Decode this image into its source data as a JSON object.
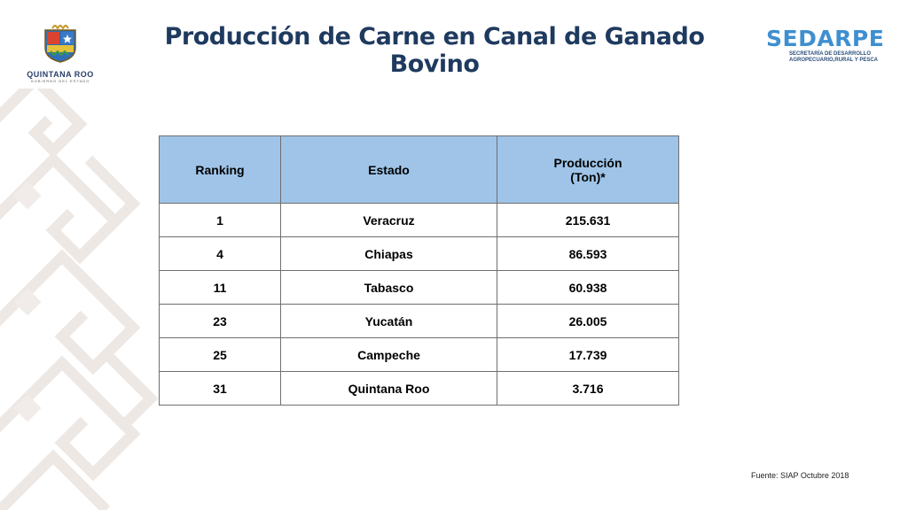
{
  "title": "Producción de Carne en Canal de Ganado Bovino",
  "logo_left": {
    "line1": "QUINTANA ROO",
    "line2": "GOBIERNO DEL ESTADO"
  },
  "logo_right": {
    "brand": "SEDARPE",
    "sub1": "SECRETARÍA DE DESARROLLO",
    "sub2": "AGROPECUARIO,RURAL Y PESCA"
  },
  "table": {
    "headers": {
      "ranking": "Ranking",
      "estado": "Estado",
      "produccion_line1": "Producción",
      "produccion_line2": "(Ton)*"
    },
    "rows": [
      {
        "ranking": "1",
        "estado": "Veracruz",
        "produccion": "215.631"
      },
      {
        "ranking": "4",
        "estado": "Chiapas",
        "produccion": "86.593"
      },
      {
        "ranking": "11",
        "estado": "Tabasco",
        "produccion": "60.938"
      },
      {
        "ranking": "23",
        "estado": "Yucatán",
        "produccion": "26.005"
      },
      {
        "ranking": "25",
        "estado": "Campeche",
        "produccion": "17.739"
      },
      {
        "ranking": "31",
        "estado": "Quintana Roo",
        "produccion": "3.716"
      }
    ]
  },
  "footnote": "Fuente: SIAP Octubre 2018",
  "colors": {
    "header_bg": "#9fc4e8",
    "title": "#1f3a5f",
    "brand": "#3f8fd0",
    "pattern": "#efe9e6"
  }
}
